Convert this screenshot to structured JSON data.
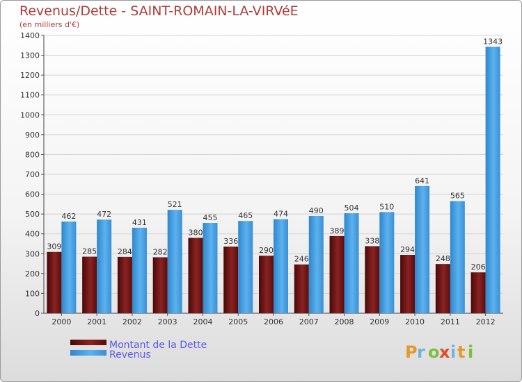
{
  "title": "Revenus/Dette - SAINT-ROMAIN-LA-VIRVéE",
  "subtitle": "(en milliers d'€)",
  "colors": {
    "dette": "#7a1a1a",
    "revenus": "#4aa3e6",
    "title": "#b03a3a",
    "legend_text": "#5a5ae6"
  },
  "chart_data": {
    "type": "bar",
    "title": "Revenus/Dette - SAINT-ROMAIN-LA-VIRVéE",
    "ylabel": "(en milliers d'€)",
    "xlabel": "",
    "ylim": [
      0,
      1400
    ],
    "yticks": [
      0,
      100,
      200,
      300,
      400,
      500,
      600,
      700,
      800,
      900,
      1000,
      1100,
      1200,
      1300,
      1400
    ],
    "grid": true,
    "legend_position": "bottom-left",
    "categories": [
      "2000",
      "2001",
      "2002",
      "2003",
      "2004",
      "2005",
      "2006",
      "2007",
      "2008",
      "2009",
      "2010",
      "2011",
      "2012"
    ],
    "series": [
      {
        "name": "Montant de la Dette",
        "values": [
          309,
          285,
          284,
          282,
          380,
          336,
          290,
          246,
          389,
          338,
          294,
          248,
          206
        ]
      },
      {
        "name": "Revenus",
        "values": [
          462,
          472,
          431,
          521,
          455,
          465,
          474,
          490,
          504,
          510,
          641,
          565,
          1343
        ]
      }
    ]
  },
  "logo": {
    "text": "Proxiti",
    "letters": [
      "P",
      "r",
      "o",
      "x",
      "i",
      "t",
      "i"
    ]
  }
}
